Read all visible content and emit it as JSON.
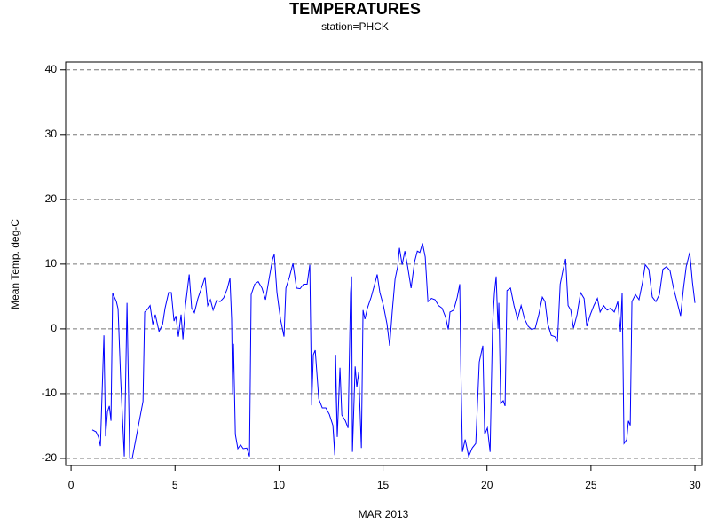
{
  "chart_data": {
    "type": "line",
    "title": "TEMPERATURES",
    "subtitle": "station=PHCK",
    "xlabel": "MAR 2013",
    "ylabel": "Mean Temp. deg-C",
    "xlim": [
      -0.26,
      30.34
    ],
    "ylim": [
      -21.1,
      41.2
    ],
    "xticks": [
      0,
      5,
      10,
      15,
      20,
      25,
      30
    ],
    "yticks": [
      -20,
      -10,
      0,
      10,
      20,
      30,
      40
    ],
    "grid": true,
    "x": [
      1.02,
      1.2,
      1.32,
      1.41,
      1.58,
      1.66,
      1.75,
      1.84,
      1.92,
      2.0,
      2.18,
      2.26,
      2.39,
      2.56,
      2.69,
      2.82,
      2.94,
      3.46,
      3.54,
      3.67,
      3.8,
      3.93,
      4.05,
      4.23,
      4.4,
      4.52,
      4.69,
      4.82,
      4.95,
      5.04,
      5.16,
      5.29,
      5.38,
      5.5,
      5.68,
      5.8,
      5.93,
      6.1,
      6.27,
      6.44,
      6.57,
      6.7,
      6.83,
      7.0,
      7.17,
      7.34,
      7.51,
      7.64,
      7.72,
      7.77,
      7.81,
      7.9,
      8.02,
      8.15,
      8.28,
      8.45,
      8.58,
      8.66,
      8.83,
      9.0,
      9.18,
      9.35,
      9.52,
      9.69,
      9.77,
      9.9,
      10.07,
      10.24,
      10.33,
      10.5,
      10.67,
      10.84,
      11.01,
      11.18,
      11.35,
      11.48,
      11.57,
      11.65,
      11.74,
      11.91,
      12.08,
      12.25,
      12.42,
      12.59,
      12.68,
      12.72,
      12.8,
      12.93,
      13.02,
      13.19,
      13.32,
      13.44,
      13.49,
      13.53,
      13.66,
      13.74,
      13.83,
      13.96,
      14.04,
      14.13,
      14.25,
      14.43,
      14.6,
      14.72,
      14.85,
      15.02,
      15.19,
      15.32,
      15.45,
      15.58,
      15.71,
      15.79,
      15.92,
      16.05,
      16.18,
      16.35,
      16.52,
      16.65,
      16.77,
      16.9,
      17.03,
      17.16,
      17.33,
      17.5,
      17.67,
      17.84,
      18.01,
      18.14,
      18.22,
      18.4,
      18.57,
      18.69,
      18.74,
      18.82,
      18.95,
      19.12,
      19.29,
      19.46,
      19.63,
      19.8,
      19.89,
      20.02,
      20.15,
      20.27,
      20.36,
      20.44,
      20.53,
      20.57,
      20.66,
      20.78,
      20.87,
      20.96,
      21.13,
      21.3,
      21.47,
      21.64,
      21.81,
      21.98,
      22.15,
      22.32,
      22.49,
      22.66,
      22.79,
      22.92,
      23.09,
      23.26,
      23.39,
      23.52,
      23.65,
      23.78,
      23.9,
      24.03,
      24.16,
      24.33,
      24.5,
      24.67,
      24.8,
      24.97,
      25.14,
      25.31,
      25.44,
      25.61,
      25.78,
      25.95,
      26.12,
      26.29,
      26.42,
      26.5,
      26.59,
      26.72,
      26.8,
      26.89,
      26.97,
      27.14,
      27.31,
      27.48,
      27.61,
      27.78,
      27.95,
      28.12,
      28.29,
      28.46,
      28.63,
      28.8,
      28.97,
      29.14,
      29.31,
      29.45,
      29.58,
      29.75,
      29.88,
      30.0
    ],
    "series": [
      {
        "color": "#0000ff",
        "values": [
          -15.6,
          -15.9,
          -16.7,
          -18.1,
          -1,
          -16.6,
          -12.8,
          -11.9,
          -14.2,
          5.5,
          4.2,
          3.1,
          -8.1,
          -19.7,
          4.0,
          -20,
          -20,
          -11.2,
          2.6,
          3.0,
          3.6,
          0.7,
          2.2,
          -0.4,
          0.7,
          3.2,
          5.6,
          5.6,
          1.2,
          2.0,
          -1.2,
          2.2,
          -1.6,
          3.6,
          8.4,
          3.2,
          2.5,
          4.7,
          6.3,
          8.0,
          3.6,
          4.5,
          2.9,
          4.4,
          4.2,
          4.8,
          6.2,
          7.8,
          1.5,
          -10.1,
          -2.3,
          -16.3,
          -18.5,
          -17.9,
          -18.5,
          -18.4,
          -19.7,
          5.3,
          6.9,
          7.3,
          6.3,
          4.5,
          7.7,
          10.8,
          11.5,
          5.6,
          1.5,
          -1.2,
          6.3,
          8.0,
          10.1,
          6.3,
          6.2,
          6.9,
          6.9,
          9.9,
          -11.8,
          -4.0,
          -3.3,
          -10.8,
          -12.2,
          -12.2,
          -13.2,
          -14.9,
          -19.5,
          -4.0,
          -16.7,
          -6.0,
          -13.3,
          -14.2,
          -15.3,
          5.6,
          8.1,
          -19.0,
          -5.8,
          -9.0,
          -6.7,
          -18.4,
          2.9,
          1.5,
          3.2,
          4.9,
          6.9,
          8.4,
          5.6,
          3.6,
          0.8,
          -2.6,
          2.9,
          7.7,
          9.7,
          12.5,
          9.9,
          12.0,
          9.7,
          6.3,
          10.4,
          12.0,
          11.8,
          13.2,
          11.1,
          4.2,
          4.7,
          4.5,
          3.6,
          3.2,
          1.8,
          -0.1,
          2.6,
          2.9,
          4.9,
          6.9,
          -5.6,
          -19.0,
          -17.1,
          -19.7,
          -18.4,
          -17.7,
          -5.1,
          -2.6,
          -16.3,
          -15.3,
          -19.0,
          0.8,
          5.6,
          8.1,
          0.0,
          4.0,
          -11.5,
          -11.1,
          -11.9,
          5.9,
          6.3,
          3.6,
          1.5,
          3.6,
          1.5,
          0.4,
          -0.1,
          0.1,
          2.2,
          4.9,
          4.2,
          0.8,
          -1.0,
          -1.2,
          -1.9,
          6.9,
          9.0,
          10.8,
          3.6,
          2.9,
          0.1,
          2.2,
          5.6,
          4.7,
          0.4,
          2.2,
          3.6,
          4.7,
          2.6,
          3.6,
          2.9,
          3.2,
          2.6,
          4.2,
          -0.5,
          5.6,
          -17.7,
          -17.1,
          -14.2,
          -14.9,
          4.2,
          5.3,
          4.5,
          7.2,
          9.9,
          9.2,
          4.9,
          4.2,
          5.3,
          9.2,
          9.6,
          9.0,
          6.3,
          4.2,
          2.0,
          6.3,
          9.6,
          11.8,
          7.2,
          4.0
        ]
      }
    ]
  }
}
